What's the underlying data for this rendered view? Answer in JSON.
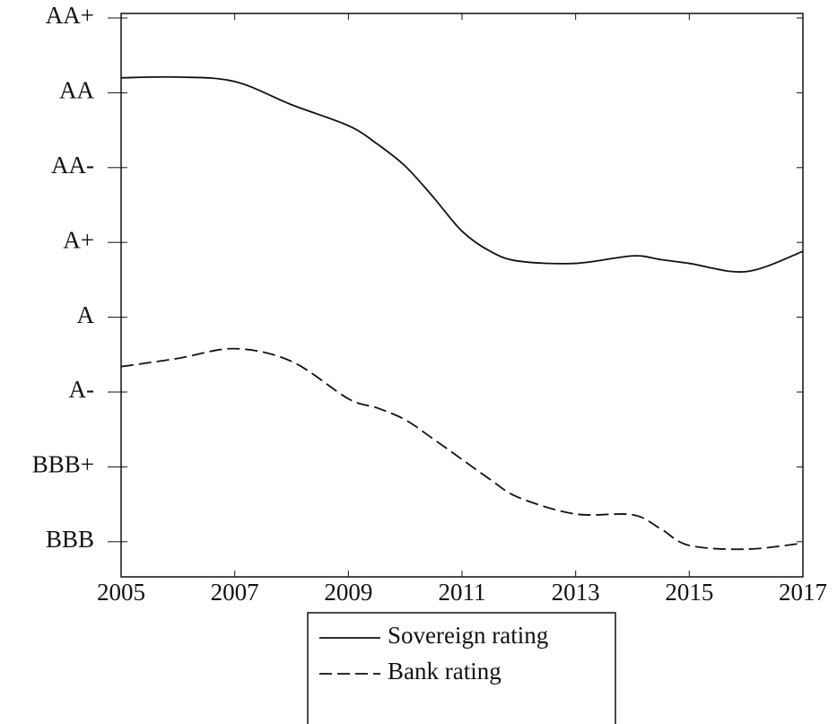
{
  "chart_data": {
    "type": "line",
    "x": [
      2005,
      2006,
      2007,
      2008,
      2009,
      2009.5,
      2010,
      2010.5,
      2011,
      2011.5,
      2012,
      2013,
      2014,
      2014.5,
      2015,
      2016,
      2017
    ],
    "series": [
      {
        "name": "Sovereign rating",
        "color": "#111111",
        "dash": "solid",
        "values": [
          7.2,
          7.21,
          7.15,
          6.84,
          6.56,
          6.32,
          6.02,
          5.6,
          5.15,
          4.88,
          4.75,
          4.72,
          4.82,
          4.77,
          4.72,
          4.61,
          4.88
        ]
      },
      {
        "name": "Bank rating",
        "color": "#111111",
        "dash": "dashed",
        "values": [
          3.34,
          3.45,
          3.58,
          3.41,
          2.91,
          2.79,
          2.63,
          2.37,
          2.1,
          1.83,
          1.59,
          1.37,
          1.36,
          1.17,
          0.95,
          0.9,
          0.98
        ]
      }
    ],
    "xlim": [
      2005,
      2017
    ],
    "xticks": [
      2005,
      2007,
      2009,
      2011,
      2013,
      2015,
      2017
    ],
    "ylim": [
      0.53,
      8.06
    ],
    "yticks": [
      {
        "value": 1,
        "label": "BBB"
      },
      {
        "value": 2,
        "label": "BBB+"
      },
      {
        "value": 3,
        "label": "A-"
      },
      {
        "value": 4,
        "label": "A"
      },
      {
        "value": 5,
        "label": "A+"
      },
      {
        "value": 6,
        "label": "AA-"
      },
      {
        "value": 7,
        "label": "AA"
      },
      {
        "value": 8,
        "label": "AA+"
      }
    ],
    "grid": false,
    "legend": "bottom"
  }
}
